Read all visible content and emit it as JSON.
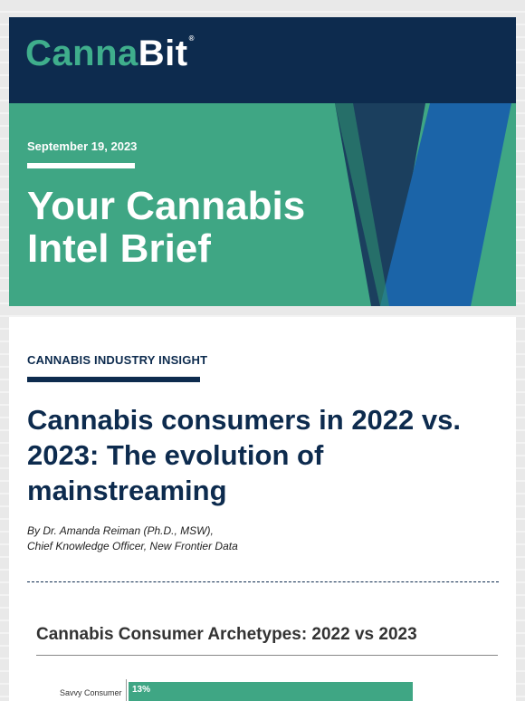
{
  "header": {
    "logo_part1": "Canna",
    "logo_part2": "Bit",
    "logo_mark": "®"
  },
  "hero": {
    "date": "September 19, 2023",
    "title": "Your Cannabis Intel Brief"
  },
  "article": {
    "kicker": "CANNABIS INDUSTRY INSIGHT",
    "headline": "Cannabis consumers in 2022 vs. 2023: The evolution of mainstreaming",
    "byline_line1": "By Dr. Amanda Reiman (Ph.D., MSW),",
    "byline_line2": "Chief Knowledge Officer, New Frontier Data"
  },
  "chart_data": {
    "type": "bar",
    "title": "Cannabis Consumer Archetypes: 2022 vs 2023",
    "categories": [
      "Savvy Consumer"
    ],
    "series": [
      {
        "values": [
          13
        ]
      }
    ],
    "value_labels": [
      "13%"
    ],
    "bar_color": "#3fa684"
  }
}
